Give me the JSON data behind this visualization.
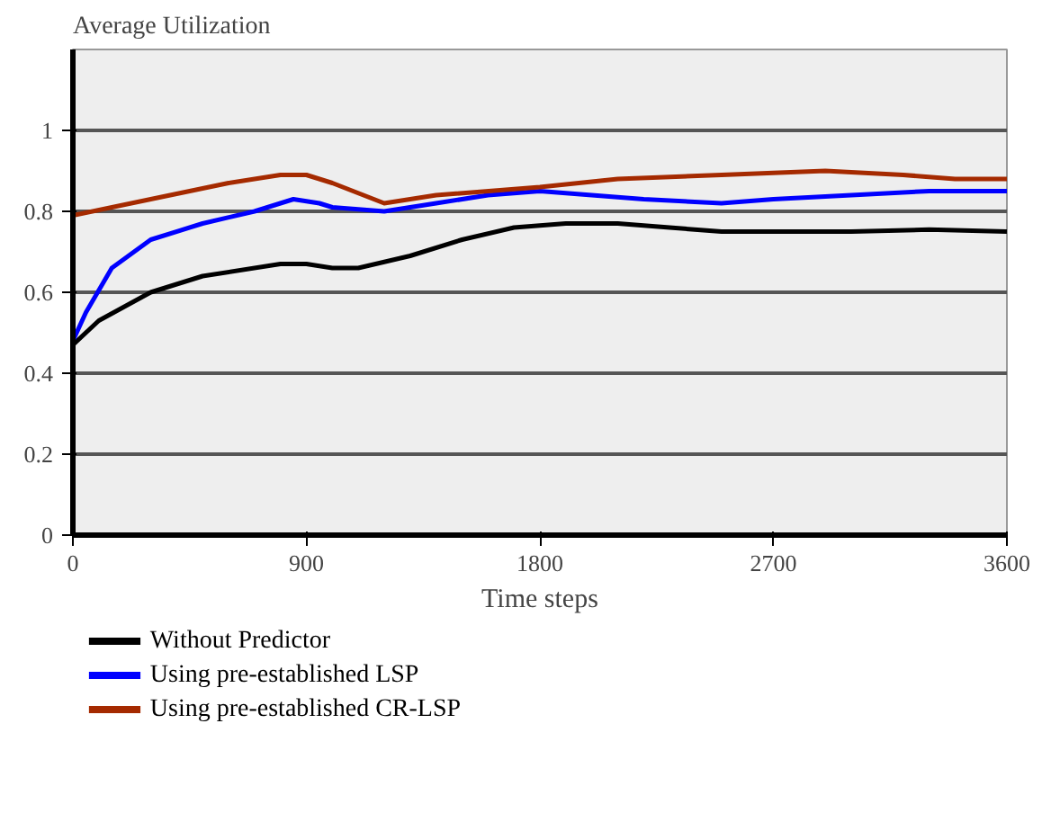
{
  "chart_data": {
    "type": "line",
    "ylabel": "Average Utilization",
    "xlabel": "Time steps",
    "xlim": [
      0,
      3600
    ],
    "xticks": [
      0,
      900,
      1800,
      2700,
      3600
    ],
    "ylim": [
      0,
      1.2
    ],
    "yticks": [
      0,
      0.2,
      0.4,
      0.6,
      0.8,
      1
    ],
    "grid": "y",
    "legend": "bottom",
    "marker": "none",
    "line_style": "solid",
    "series": [
      {
        "name": "Without Predictor",
        "color": "#000000",
        "x": [
          0,
          100,
          300,
          500,
          800,
          900,
          1000,
          1100,
          1300,
          1500,
          1700,
          1900,
          2100,
          2300,
          2500,
          2700,
          3000,
          3300,
          3600
        ],
        "values": [
          0.47,
          0.53,
          0.6,
          0.64,
          0.67,
          0.67,
          0.66,
          0.66,
          0.69,
          0.73,
          0.76,
          0.77,
          0.77,
          0.76,
          0.75,
          0.75,
          0.75,
          0.755,
          0.75
        ]
      },
      {
        "name": "Using pre-established LSP",
        "color": "#0000ff",
        "x": [
          0,
          50,
          150,
          300,
          500,
          700,
          850,
          950,
          1000,
          1200,
          1400,
          1600,
          1800,
          2000,
          2200,
          2500,
          2700,
          3000,
          3300,
          3600
        ],
        "values": [
          0.48,
          0.55,
          0.66,
          0.73,
          0.77,
          0.8,
          0.83,
          0.82,
          0.81,
          0.8,
          0.82,
          0.84,
          0.85,
          0.84,
          0.83,
          0.82,
          0.83,
          0.84,
          0.85,
          0.85
        ]
      },
      {
        "name": "Using pre-established CR-LSP",
        "color": "#a52a00",
        "x": [
          0,
          300,
          600,
          800,
          900,
          1000,
          1200,
          1400,
          1800,
          2100,
          2500,
          2900,
          3200,
          3400,
          3600
        ],
        "values": [
          0.79,
          0.83,
          0.87,
          0.89,
          0.89,
          0.87,
          0.82,
          0.84,
          0.86,
          0.88,
          0.89,
          0.9,
          0.89,
          0.88,
          0.88
        ]
      }
    ]
  }
}
